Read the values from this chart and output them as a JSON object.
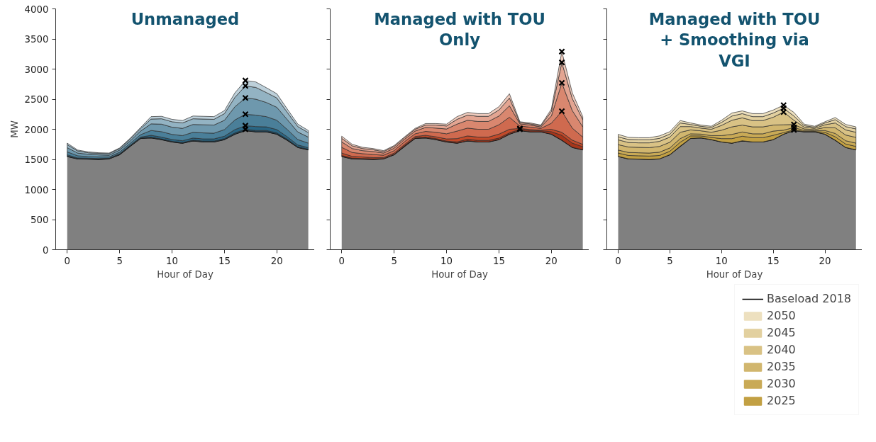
{
  "chart_data": [
    {
      "type": "area",
      "title": "Unmanaged",
      "xlabel": "Hour of Day",
      "ylabel": "MW",
      "stacked": true,
      "grid": false,
      "x": [
        0,
        1,
        2,
        3,
        4,
        5,
        6,
        7,
        8,
        9,
        10,
        11,
        12,
        13,
        14,
        15,
        16,
        17,
        18,
        19,
        20,
        21,
        22,
        23
      ],
      "xlim": [
        -1.1,
        23.6
      ],
      "ylim": [
        0,
        4000
      ],
      "xticks": [
        0,
        5,
        10,
        15,
        20
      ],
      "yticks": [
        0,
        500,
        1000,
        1500,
        2000,
        2500,
        3000,
        3500,
        4000
      ],
      "series": [
        {
          "color": "#808080",
          "values": [
            1550,
            1510,
            1505,
            1500,
            1510,
            1580,
            1720,
            1850,
            1860,
            1830,
            1790,
            1770,
            1810,
            1790,
            1790,
            1830,
            1920,
            1980,
            1960,
            1960,
            1920,
            1820,
            1700,
            1660
          ]
        },
        {
          "color": "#1c4a63",
          "values": [
            5,
            5,
            5,
            5,
            5,
            5,
            5,
            5,
            10,
            10,
            10,
            10,
            10,
            15,
            15,
            15,
            20,
            20,
            20,
            20,
            20,
            15,
            10,
            10
          ]
        },
        {
          "color": "#2a6684",
          "values": [
            20,
            10,
            10,
            10,
            5,
            10,
            10,
            15,
            30,
            30,
            30,
            30,
            35,
            35,
            35,
            40,
            55,
            60,
            65,
            60,
            55,
            40,
            30,
            25
          ]
        },
        {
          "color": "#4a7f99",
          "values": [
            50,
            35,
            25,
            25,
            20,
            25,
            30,
            40,
            80,
            90,
            85,
            85,
            95,
            100,
            95,
            110,
            160,
            190,
            190,
            170,
            155,
            120,
            90,
            75
          ]
        },
        {
          "color": "#6e98ad",
          "values": [
            70,
            45,
            40,
            35,
            30,
            35,
            40,
            60,
            110,
            125,
            120,
            120,
            130,
            135,
            135,
            155,
            220,
            270,
            265,
            235,
            215,
            165,
            125,
            100
          ]
        },
        {
          "color": "#93b3c3",
          "values": [
            50,
            35,
            25,
            25,
            25,
            25,
            30,
            40,
            80,
            90,
            90,
            90,
            95,
            95,
            95,
            110,
            155,
            200,
            195,
            165,
            155,
            120,
            90,
            75
          ]
        },
        {
          "color": "#bdd0da",
          "values": [
            25,
            15,
            15,
            10,
            10,
            10,
            15,
            20,
            40,
            40,
            40,
            40,
            45,
            45,
            45,
            50,
            75,
            90,
            90,
            80,
            70,
            55,
            40,
            35
          ]
        },
        {
          "type": "scatter",
          "marker": "cross",
          "color": "#000000",
          "x": [
            17,
            17,
            17,
            17,
            17,
            17
          ],
          "values": [
            2000,
            2060,
            2250,
            2520,
            2720,
            2810
          ]
        }
      ]
    },
    {
      "type": "area",
      "title": "Managed with TOU\nOnly",
      "xlabel": "Hour of Day",
      "stacked": true,
      "grid": false,
      "tick_labels": "x",
      "x": [
        0,
        1,
        2,
        3,
        4,
        5,
        6,
        7,
        8,
        9,
        10,
        11,
        12,
        13,
        14,
        15,
        16,
        17,
        18,
        19,
        20,
        21,
        22,
        23
      ],
      "xlim": [
        -1.1,
        23.6
      ],
      "ylim": [
        0,
        4000
      ],
      "xticks": [
        0,
        5,
        10,
        15,
        20
      ],
      "yticks": [
        0,
        500,
        1000,
        1500,
        2000,
        2500,
        3000,
        3500,
        4000
      ],
      "series": [
        {
          "color": "#808080",
          "values": [
            1550,
            1510,
            1505,
            1500,
            1510,
            1580,
            1720,
            1850,
            1860,
            1830,
            1790,
            1770,
            1810,
            1790,
            1790,
            1830,
            1920,
            1980,
            1960,
            1960,
            1920,
            1820,
            1700,
            1660
          ]
        },
        {
          "color": "#a6361b",
          "values": [
            15,
            10,
            10,
            10,
            5,
            5,
            10,
            10,
            10,
            15,
            15,
            20,
            25,
            25,
            25,
            25,
            20,
            20,
            20,
            15,
            40,
            80,
            70,
            50
          ]
        },
        {
          "color": "#c24a2a",
          "values": [
            40,
            30,
            25,
            20,
            15,
            20,
            20,
            20,
            30,
            30,
            35,
            55,
            55,
            55,
            55,
            65,
            60,
            15,
            15,
            10,
            40,
            50,
            50,
            40
          ]
        },
        {
          "color": "#cf6a4f",
          "values": [
            95,
            65,
            55,
            50,
            40,
            40,
            45,
            45,
            65,
            75,
            85,
            125,
            130,
            130,
            130,
            155,
            200,
            40,
            40,
            30,
            100,
            350,
            200,
            120
          ]
        },
        {
          "color": "#d9876f",
          "values": [
            90,
            65,
            50,
            50,
            35,
            40,
            40,
            45,
            65,
            70,
            80,
            115,
            130,
            130,
            130,
            145,
            190,
            35,
            35,
            25,
            120,
            470,
            290,
            170
          ]
        },
        {
          "color": "#e3a592",
          "values": [
            60,
            45,
            35,
            30,
            25,
            30,
            25,
            30,
            40,
            50,
            50,
            80,
            85,
            85,
            85,
            100,
            130,
            20,
            20,
            20,
            75,
            340,
            200,
            120
          ]
        },
        {
          "color": "#efcbbd",
          "values": [
            35,
            25,
            20,
            20,
            15,
            15,
            15,
            15,
            25,
            25,
            30,
            45,
            45,
            45,
            45,
            55,
            70,
            15,
            15,
            10,
            40,
            180,
            95,
            50
          ]
        },
        {
          "type": "scatter",
          "marker": "cross",
          "color": "#000000",
          "x": [
            17,
            17,
            21,
            21,
            21,
            21
          ],
          "values": [
            2000,
            2015,
            2300,
            2770,
            3110,
            3290
          ]
        }
      ]
    },
    {
      "type": "area",
      "title": "Managed with TOU\n+ Smoothing via\nVGI",
      "xlabel": "Hour of Day",
      "stacked": true,
      "grid": false,
      "tick_labels": "x",
      "legend": "bottom right",
      "x": [
        0,
        1,
        2,
        3,
        4,
        5,
        6,
        7,
        8,
        9,
        10,
        11,
        12,
        13,
        14,
        15,
        16,
        17,
        18,
        19,
        20,
        21,
        22,
        23
      ],
      "xlim": [
        -1.1,
        23.6
      ],
      "ylim": [
        0,
        4000
      ],
      "xticks": [
        0,
        5,
        10,
        15,
        20
      ],
      "yticks": [
        0,
        500,
        1000,
        1500,
        2000,
        2500,
        3000,
        3500,
        4000
      ],
      "series": [
        {
          "name": "Baseload 2018",
          "color": "#808080",
          "values": [
            1550,
            1510,
            1505,
            1500,
            1510,
            1580,
            1720,
            1850,
            1860,
            1830,
            1790,
            1770,
            1810,
            1790,
            1790,
            1830,
            1920,
            1980,
            1960,
            1960,
            1920,
            1820,
            1700,
            1660
          ]
        },
        {
          "name": "2025",
          "color": "#c2a043",
          "values": [
            55,
            55,
            55,
            55,
            55,
            55,
            65,
            40,
            30,
            35,
            55,
            75,
            75,
            70,
            70,
            70,
            25,
            10,
            5,
            5,
            30,
            55,
            55,
            55
          ]
        },
        {
          "name": "2030",
          "color": "#c9aa56",
          "values": [
            50,
            50,
            50,
            50,
            55,
            55,
            60,
            35,
            30,
            30,
            50,
            70,
            70,
            65,
            65,
            70,
            40,
            40,
            15,
            10,
            30,
            55,
            55,
            55
          ]
        },
        {
          "name": "2035",
          "color": "#d1b66e",
          "values": [
            90,
            90,
            90,
            90,
            95,
            95,
            105,
            65,
            55,
            55,
            90,
            125,
            115,
            115,
            115,
            100,
            90,
            50,
            25,
            20,
            50,
            95,
            95,
            95
          ]
        },
        {
          "name": "2040",
          "color": "#d9c285",
          "values": [
            80,
            75,
            75,
            80,
            85,
            85,
            95,
            55,
            45,
            50,
            80,
            110,
            120,
            105,
            105,
            130,
            210,
            70,
            30,
            20,
            45,
            80,
            85,
            85
          ]
        },
        {
          "name": "2045",
          "color": "#e2d09f",
          "values": [
            50,
            50,
            50,
            50,
            50,
            50,
            60,
            35,
            30,
            30,
            50,
            70,
            70,
            65,
            65,
            70,
            65,
            70,
            25,
            20,
            30,
            55,
            55,
            55
          ]
        },
        {
          "name": "2050",
          "color": "#ede0bf",
          "values": [
            40,
            35,
            35,
            35,
            40,
            40,
            40,
            25,
            20,
            20,
            35,
            50,
            45,
            50,
            50,
            50,
            50,
            60,
            25,
            15,
            20,
            35,
            35,
            35
          ]
        },
        {
          "type": "scatter",
          "marker": "cross",
          "color": "#000000",
          "x": [
            16,
            16,
            16,
            17,
            17,
            17
          ],
          "values": [
            2400,
            2350,
            2285,
            2080,
            2030,
            1990
          ]
        }
      ]
    }
  ]
}
